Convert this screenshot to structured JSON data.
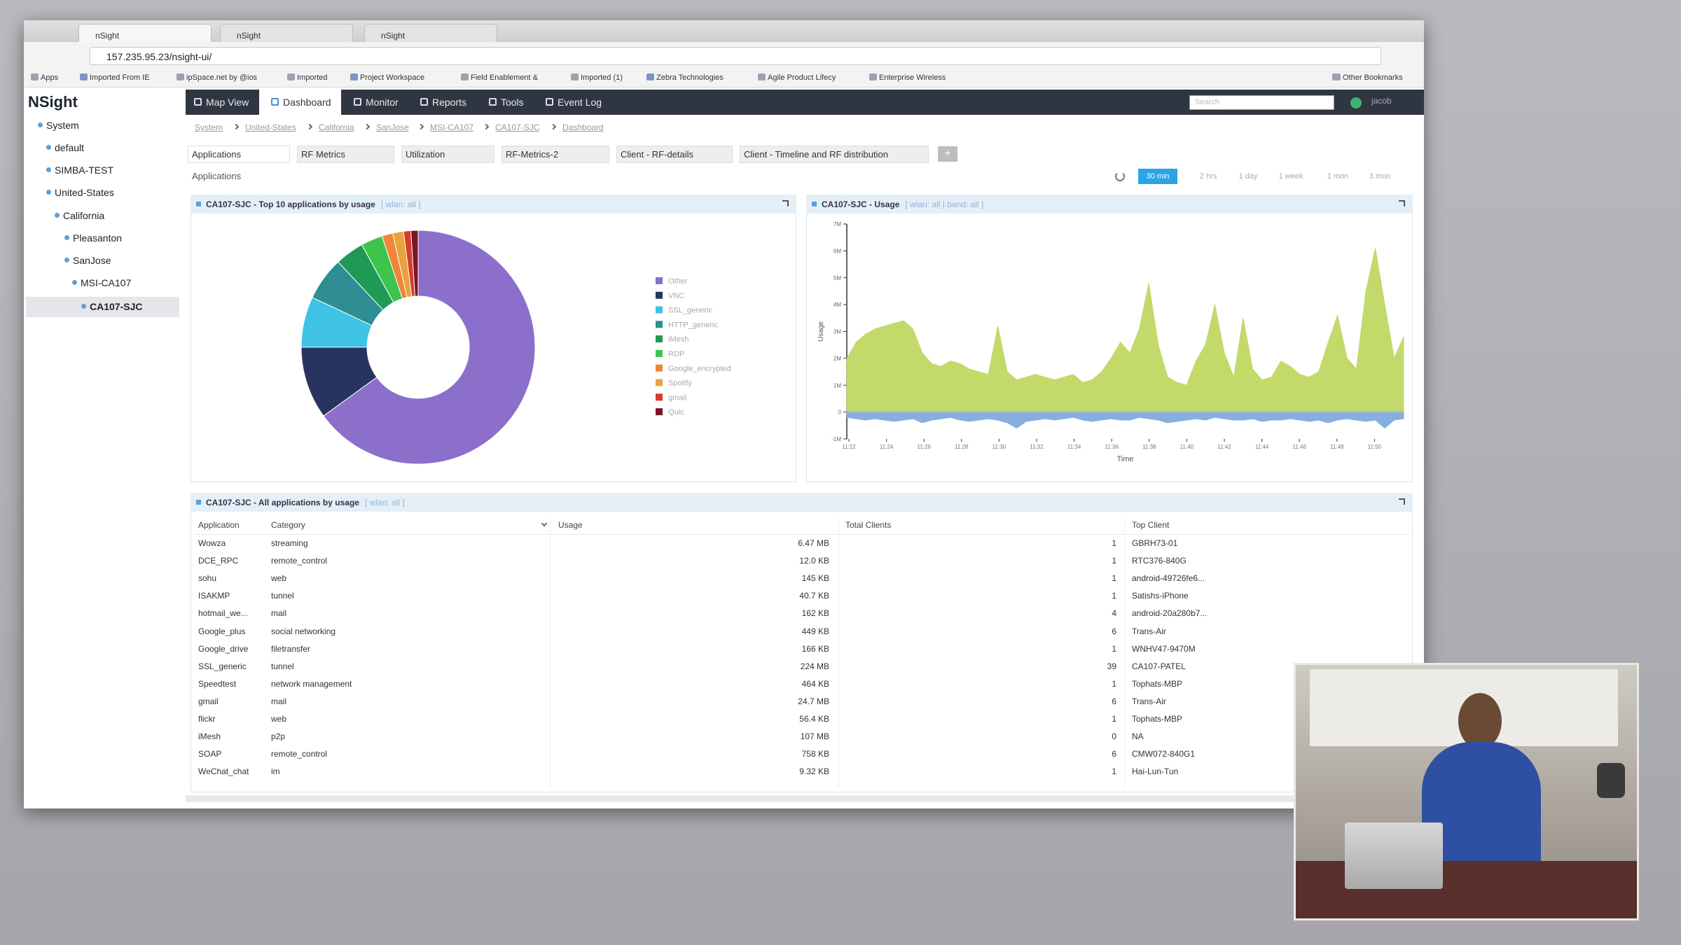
{
  "browser": {
    "tabs": [
      "nSight",
      "nSight",
      "nSight"
    ],
    "url": "157.235.95.23/nsight-ui/",
    "bookmarks": [
      "Apps",
      "Imported From IE",
      "ipSpace.net by @ios",
      "Imported",
      "Project Workspace",
      "Field Enablement &",
      "Imported (1)",
      "Zebra Technologies",
      "Agile Product Lifecy",
      "Enterprise Wireless"
    ],
    "other_bookmarks": "Other Bookmarks"
  },
  "app": {
    "logo": "NSight",
    "nav": [
      "Map View",
      "Dashboard",
      "Monitor",
      "Reports",
      "Tools",
      "Event Log"
    ],
    "active_nav": "Dashboard",
    "search_placeholder": "Search",
    "user": "jacob"
  },
  "sidebar": {
    "tree": [
      "System",
      "default",
      "SIMBA-TEST",
      "United-States",
      "California",
      "Pleasanton",
      "SanJose",
      "MSI-CA107",
      "CA107-SJC"
    ],
    "selected": "CA107-SJC"
  },
  "breadcrumbs": [
    "System",
    "United-States",
    "California",
    "SanJose",
    "MSI-CA107",
    "CA107-SJC",
    "Dashboard"
  ],
  "dashboard_tabs": [
    "Applications",
    "RF Metrics",
    "Utilization",
    "RF-Metrics-2",
    "Client - RF-details",
    "Client - Timeline and RF distribution"
  ],
  "add_tab": "+",
  "section_label": "Applications",
  "time_ranges": [
    "30 min",
    "2 hrs",
    "1 day",
    "1 week",
    "1 mon",
    "3 mon"
  ],
  "active_time_range": "30 min",
  "chart_data": [
    {
      "type": "pie",
      "donut": true,
      "title": "CA107-SJC - Top 10 applications by usage",
      "subtitle": "[ wlan: all ]",
      "categories": [
        "Other",
        "VNC",
        "SSL_generic",
        "HTTP_generic",
        "iMesh",
        "RDP",
        "Google_encrypted",
        "Spotify",
        "gmail",
        "Quic"
      ],
      "values": [
        65,
        10,
        7,
        6,
        4,
        3,
        1.5,
        1.5,
        1,
        1
      ],
      "colors": [
        "#8b6fcb",
        "#283460",
        "#3ec3e6",
        "#2e8e93",
        "#1f9a55",
        "#3cc44c",
        "#f0853a",
        "#e8a33c",
        "#d83a2c",
        "#7a1822"
      ]
    },
    {
      "type": "area",
      "title": "CA107-SJC - Usage",
      "subtitle": "[ wlan: all | band: all ]",
      "y_label": "Usage",
      "x_label": "Time",
      "ylim": [
        -1,
        7
      ],
      "yticks": [
        {
          "value": -1,
          "label": "-1M"
        },
        0,
        {
          "value": 1,
          "label": "1M"
        },
        {
          "value": 2,
          "label": "2M"
        },
        {
          "value": 3,
          "label": "3M"
        },
        {
          "value": 4,
          "label": "4M"
        },
        {
          "value": 5,
          "label": "5M"
        },
        {
          "value": 6,
          "label": "6M"
        },
        {
          "value": 7,
          "label": "7M"
        }
      ],
      "xticks": [
        "11:22",
        "11:24",
        "11:26",
        "11:28",
        "11:30",
        "11:32",
        "11:34",
        "11:36",
        "11:38",
        "11:40",
        "11:42",
        "11:44",
        "11:46",
        "11:48",
        "11:50"
      ],
      "series": [
        {
          "color": "#c3d96a",
          "values": [
            2.0,
            2.6,
            2.9,
            3.1,
            3.2,
            3.3,
            3.4,
            3.1,
            2.2,
            1.8,
            1.7,
            1.9,
            1.8,
            1.6,
            1.5,
            1.4,
            3.2,
            1.5,
            1.2,
            1.3,
            1.4,
            1.3,
            1.2,
            1.3,
            1.4,
            1.1,
            1.2,
            1.5,
            2.0,
            2.6,
            2.2,
            3.1,
            4.8,
            2.5,
            1.3,
            1.1,
            1.0,
            1.9,
            2.5,
            4.0,
            2.2,
            1.3,
            3.5,
            1.6,
            1.2,
            1.3,
            1.9,
            1.7,
            1.4,
            1.3,
            1.5,
            2.6,
            3.6,
            2.0,
            1.6,
            4.5,
            6.1,
            4.0,
            2.0,
            2.8
          ]
        },
        {
          "color": "#86aee0",
          "values": [
            -0.2,
            -0.25,
            -0.3,
            -0.25,
            -0.3,
            -0.35,
            -0.3,
            -0.25,
            -0.4,
            -0.3,
            -0.25,
            -0.2,
            -0.3,
            -0.35,
            -0.3,
            -0.25,
            -0.3,
            -0.4,
            -0.6,
            -0.35,
            -0.3,
            -0.25,
            -0.3,
            -0.25,
            -0.2,
            -0.3,
            -0.35,
            -0.3,
            -0.25,
            -0.3,
            -0.3,
            -0.2,
            -0.25,
            -0.3,
            -0.4,
            -0.35,
            -0.3,
            -0.25,
            -0.3,
            -0.2,
            -0.25,
            -0.3,
            -0.3,
            -0.25,
            -0.35,
            -0.3,
            -0.3,
            -0.25,
            -0.3,
            -0.35,
            -0.3,
            -0.4,
            -0.3,
            -0.25,
            -0.3,
            -0.35,
            -0.3,
            -0.6,
            -0.3,
            -0.25
          ]
        }
      ]
    }
  ],
  "table": {
    "title": "CA107-SJC - All applications by usage",
    "subtitle": "[ wlan: all ]",
    "columns": [
      "Application",
      "Category",
      "Usage",
      "Total Clients",
      "Top Client"
    ],
    "rows": [
      [
        "Wowza",
        "streaming",
        "6.47 MB",
        "1",
        "GBRH73-01"
      ],
      [
        "DCE_RPC",
        "remote_control",
        "12.0 KB",
        "1",
        "RTC376-840G"
      ],
      [
        "sohu",
        "web",
        "145 KB",
        "1",
        "android-49726fe6..."
      ],
      [
        "ISAKMP",
        "tunnel",
        "40.7 KB",
        "1",
        "Satishs-iPhone"
      ],
      [
        "hotmail_we...",
        "mail",
        "162 KB",
        "4",
        "android-20a280b7..."
      ],
      [
        "Google_plus",
        "social networking",
        "449 KB",
        "6",
        "Trans-Air"
      ],
      [
        "Google_drive",
        "filetransfer",
        "166 KB",
        "1",
        "WNHV47-9470M"
      ],
      [
        "SSL_generic",
        "tunnel",
        "224 MB",
        "39",
        "CA107-PATEL"
      ],
      [
        "Speedtest",
        "network management",
        "464 KB",
        "1",
        "Tophats-MBP"
      ],
      [
        "gmail",
        "mail",
        "24.7 MB",
        "6",
        "Trans-Air"
      ],
      [
        "flickr",
        "web",
        "56.4 KB",
        "1",
        "Tophats-MBP"
      ],
      [
        "iMesh",
        "p2p",
        "107 MB",
        "0",
        "NA"
      ],
      [
        "SOAP",
        "remote_control",
        "758 KB",
        "6",
        "CMW072-840G1"
      ],
      [
        "WeChat_chat",
        "im",
        "9.32 KB",
        "1",
        "Hai-Lun-Tun"
      ]
    ]
  }
}
